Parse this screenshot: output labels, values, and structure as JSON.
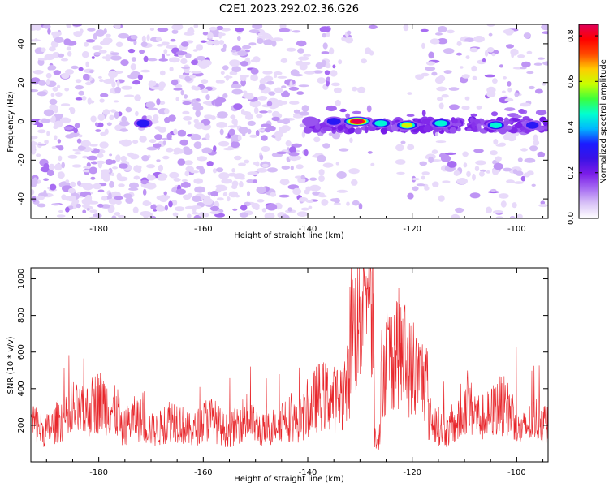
{
  "figure": {
    "title": "C2E1.2023.292.02.36.G26"
  },
  "colors": {
    "snr_line": "#e8262b",
    "frame": "#000000",
    "colormap": [
      "#ffffff",
      "#d9c3f7",
      "#a66bf2",
      "#7a1de8",
      "#3a12e6",
      "#1b1bff",
      "#00b7ff",
      "#00ffd0",
      "#3cff3c",
      "#c8ff00",
      "#ffcc00",
      "#ff4a00",
      "#ff0000",
      "#e0005a"
    ]
  },
  "chart_data": [
    {
      "type": "heatmap",
      "title": "",
      "xlabel": "Height of straight line (km)",
      "ylabel": "Frequency (Hz)",
      "xlim": [
        -193,
        -94
      ],
      "ylim": [
        -50,
        50
      ],
      "xticks": [
        -180,
        -160,
        -140,
        -120,
        -100
      ],
      "xtick_labels": [
        "-180",
        "-160",
        "-140",
        "-120",
        "-100"
      ],
      "yticks": [
        -40,
        -20,
        0,
        20,
        40
      ],
      "ytick_labels": [
        "-40",
        "-20",
        "0",
        "20",
        "40"
      ],
      "colorbar": {
        "label": "Normalized spectral amplitude",
        "range": [
          0,
          0.85
        ],
        "ticks": [
          0.0,
          0.2,
          0.4,
          0.6,
          0.8
        ],
        "tick_labels": [
          "0.0",
          "0.2",
          "0.4",
          "0.6",
          "0.8"
        ]
      },
      "signal_band": {
        "x_range": [
          -140,
          -94
        ],
        "frequency": 0,
        "peak_height": -130.5,
        "peak_value": 0.85
      },
      "hotspots": [
        {
          "x": -171.5,
          "y": -1,
          "value": 0.35
        },
        {
          "x": -139.5,
          "y": 0,
          "value": 0.25
        },
        {
          "x": -135,
          "y": 0,
          "value": 0.4
        },
        {
          "x": -130.5,
          "y": 0,
          "value": 0.85
        },
        {
          "x": -126,
          "y": -1,
          "value": 0.55
        },
        {
          "x": -121,
          "y": -2,
          "value": 0.6
        },
        {
          "x": -114.5,
          "y": -1,
          "value": 0.55
        },
        {
          "x": -104,
          "y": -2,
          "value": 0.45
        },
        {
          "x": -97,
          "y": -2,
          "value": 0.3
        }
      ]
    },
    {
      "type": "line",
      "title": "",
      "xlabel": "Height of straight line (km)",
      "ylabel": "SNR (10 * v/v)",
      "xlim": [
        -193,
        -94
      ],
      "ylim": [
        0,
        1060
      ],
      "xticks": [
        -180,
        -160,
        -140,
        -120,
        -100
      ],
      "xtick_labels": [
        "-180",
        "-160",
        "-140",
        "-120",
        "-100"
      ],
      "yticks": [
        200,
        400,
        600,
        800,
        1000
      ],
      "ytick_labels": [
        "200",
        "400",
        "600",
        "800",
        "1000"
      ],
      "series": [
        {
          "color": "#e8262b",
          "peak": {
            "x": -128.5,
            "y": 1040
          },
          "baseline_range": [
            50,
            450
          ]
        }
      ]
    }
  ]
}
